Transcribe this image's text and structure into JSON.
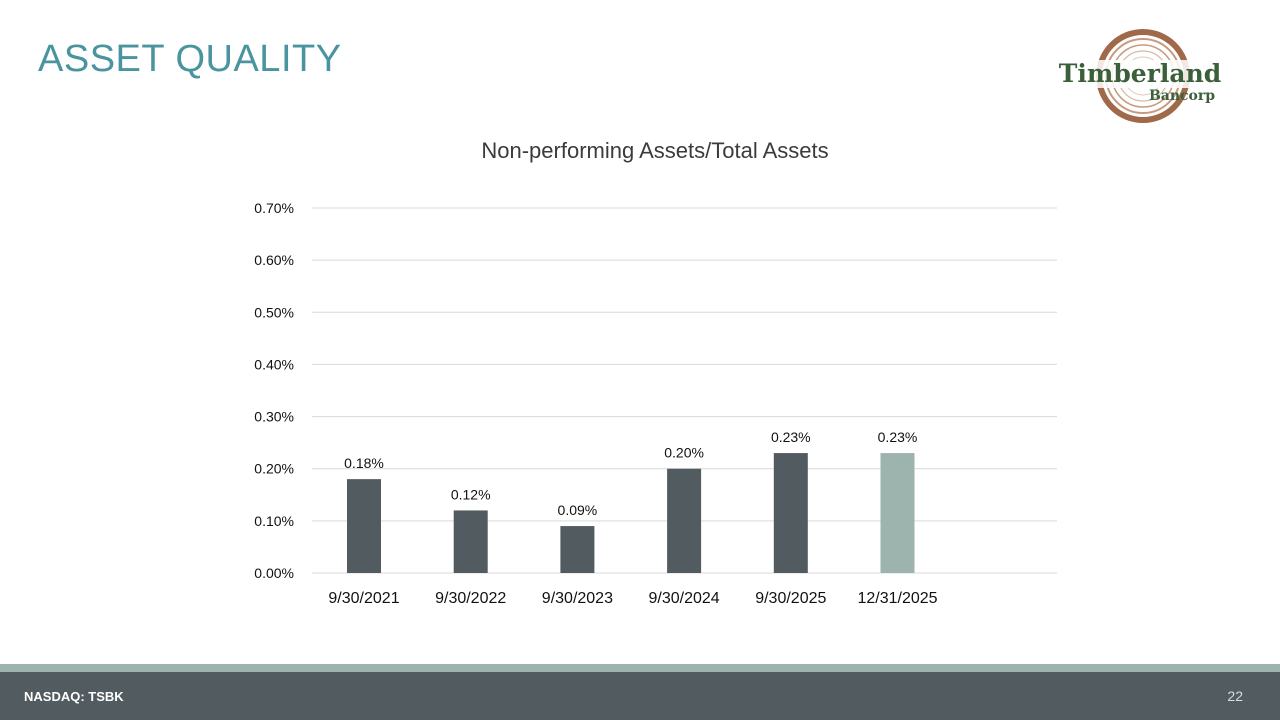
{
  "slide": {
    "title": "ASSET QUALITY",
    "page_number": "22"
  },
  "footer": {
    "ticker": "NASDAQ: TSBK"
  },
  "logo": {
    "name_line1": "Timberland",
    "name_line2": "Bancorp"
  },
  "colors": {
    "title": "#4a94a0",
    "bar_dark": "#525b5f",
    "bar_highlight": "#9db3ad",
    "footer": "#525b5f",
    "grid": "#d9d9d9",
    "logo_green": "#3a5f3a",
    "logo_brown": "#a0694a"
  },
  "chart_data": {
    "type": "bar",
    "title": "Non-performing Assets/Total Assets",
    "xlabel": "",
    "ylabel": "",
    "categories": [
      "9/30/2021",
      "9/30/2022",
      "9/30/2023",
      "9/30/2024",
      "9/30/2025",
      "12/31/2025"
    ],
    "values": [
      0.18,
      0.12,
      0.09,
      0.2,
      0.23,
      0.23
    ],
    "data_labels": [
      "0.18%",
      "0.12%",
      "0.09%",
      "0.20%",
      "0.23%",
      "0.23%"
    ],
    "highlight_index": 5,
    "ylim": [
      0,
      0.7
    ],
    "yticks": [
      0,
      0.1,
      0.2,
      0.3,
      0.4,
      0.5,
      0.6,
      0.7
    ],
    "ytick_labels": [
      "0.00%",
      "0.10%",
      "0.20%",
      "0.30%",
      "0.40%",
      "0.50%",
      "0.60%",
      "0.70%"
    ],
    "grid": true,
    "legend": "none"
  }
}
